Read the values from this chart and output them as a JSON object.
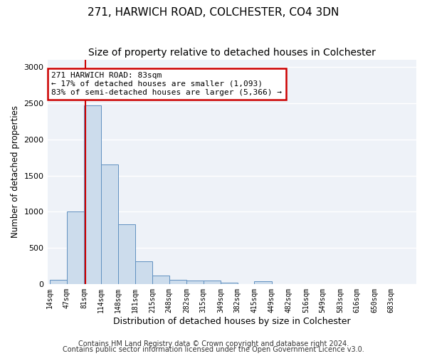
{
  "title1": "271, HARWICH ROAD, COLCHESTER, CO4 3DN",
  "title2": "Size of property relative to detached houses in Colchester",
  "xlabel": "Distribution of detached houses by size in Colchester",
  "ylabel": "Number of detached properties",
  "footnote1": "Contains HM Land Registry data © Crown copyright and database right 2024.",
  "footnote2": "Contains public sector information licensed under the Open Government Licence v3.0.",
  "bin_edges": [
    14,
    47,
    81,
    114,
    148,
    181,
    215,
    248,
    282,
    315,
    349,
    382,
    415,
    449,
    482,
    516,
    549,
    583,
    616,
    650,
    683,
    716
  ],
  "bar_heights": [
    60,
    1000,
    2470,
    1650,
    830,
    310,
    120,
    55,
    45,
    45,
    20,
    0,
    35,
    0,
    0,
    0,
    0,
    0,
    0,
    0,
    0
  ],
  "bar_color": "#ccdcec",
  "bar_edgecolor": "#6090c0",
  "property_size": 83,
  "vline_color": "#cc0000",
  "annotation_text": "271 HARWICH ROAD: 83sqm\n← 17% of detached houses are smaller (1,093)\n83% of semi-detached houses are larger (5,366) →",
  "annotation_box_color": "#cc0000",
  "annotation_text_color": "#000000",
  "ylim": [
    0,
    3100
  ],
  "yticks": [
    0,
    500,
    1000,
    1500,
    2000,
    2500,
    3000
  ],
  "tick_labels": [
    "14sqm",
    "47sqm",
    "81sqm",
    "114sqm",
    "148sqm",
    "181sqm",
    "215sqm",
    "248sqm",
    "282sqm",
    "315sqm",
    "349sqm",
    "382sqm",
    "415sqm",
    "449sqm",
    "482sqm",
    "516sqm",
    "549sqm",
    "583sqm",
    "616sqm",
    "650sqm",
    "683sqm"
  ],
  "bg_color": "#eef2f8",
  "grid_color": "#ffffff",
  "title1_fontsize": 11,
  "title2_fontsize": 10,
  "xlabel_fontsize": 9,
  "ylabel_fontsize": 8.5,
  "tick_fontsize": 7,
  "footnote_fontsize": 7
}
